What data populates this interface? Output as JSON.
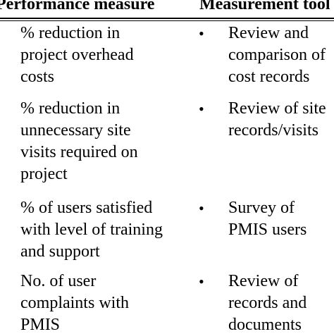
{
  "table": {
    "headers": {
      "performance_measure": "Performance measure",
      "measurement_tool": "Measurement tool"
    },
    "bullet_symbol": "•",
    "rows": [
      {
        "measure": "% reduction in\nproject overhead\ncosts",
        "tool": "Review and\ncomparison of\ncost records"
      },
      {
        "measure": "% reduction in\nunnecessary site\nvisits required on\nproject",
        "tool": "Review of site\nrecords/visits"
      },
      {
        "measure": "% of users satisfied\nwith level of training\nand support",
        "tool": "Survey of\nPMIS users"
      },
      {
        "measure": "No. of user\ncomplaints with\nPMIS",
        "tool": "Review of\nrecords and\ndocuments"
      }
    ]
  }
}
